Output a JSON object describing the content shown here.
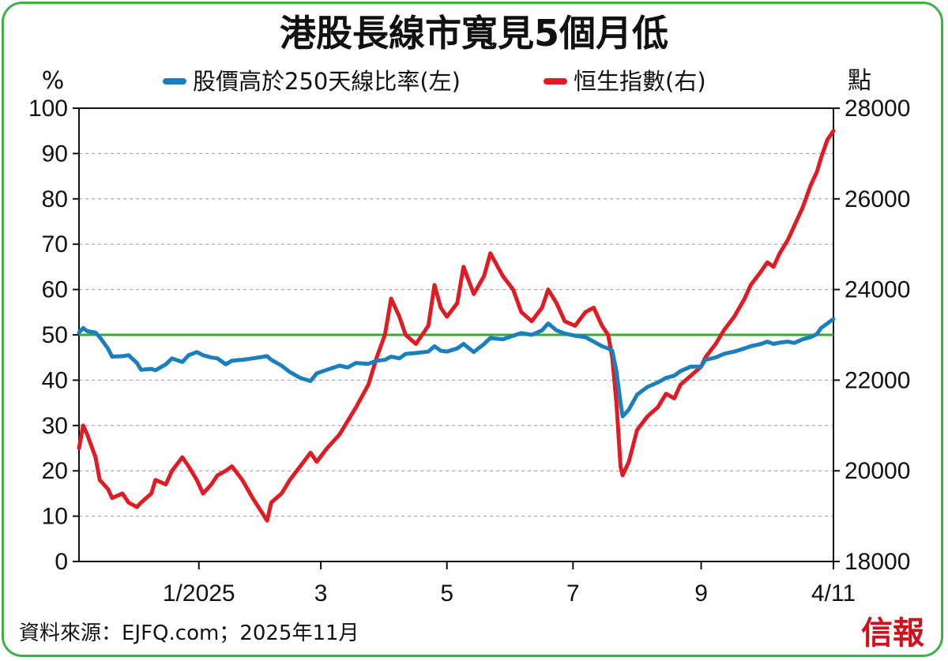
{
  "title": "港股長線市寬見5個月低",
  "source": "資料來源：EJFQ.com；2025年11月",
  "logo_text": "信報",
  "colors": {
    "breadth": "#1a7fbf",
    "hsi": "#e01b24",
    "threshold": "#3aa935",
    "frame": "#3db04a",
    "grid": "#9a9a9a"
  },
  "chart_data": {
    "type": "line",
    "left_axis_unit": "%",
    "right_axis_unit": "點",
    "y_left_range": [
      0,
      100
    ],
    "y_left_ticks": [
      "100",
      "90",
      "80",
      "70",
      "60",
      "50",
      "40",
      "30",
      "20",
      "10",
      "0"
    ],
    "y_right_range": [
      18000,
      28000
    ],
    "y_right_ticks": [
      "28000",
      "26000",
      "24000",
      "22000",
      "20000",
      "18000"
    ],
    "x_tick_labels": [
      "1/2025",
      "3",
      "5",
      "7",
      "9",
      "4/11"
    ],
    "x_range": [
      "2024-11-04",
      "2025-11-04"
    ],
    "x_ticks": [
      "2025-01-01",
      "2025-03-01",
      "2025-05-01",
      "2025-07-01",
      "2025-09-01",
      "2025-11-04"
    ],
    "legend_position": "top",
    "grid": "horizontal dashed",
    "reference_line": {
      "axis": "left",
      "value": 50
    },
    "series": [
      {
        "name": "股價高於250天線比率(左)",
        "axis": "left",
        "points": [
          [
            "2024-11-04",
            50.5
          ],
          [
            "2024-11-06",
            51.5
          ],
          [
            "2024-11-08",
            50.8
          ],
          [
            "2024-11-12",
            50.5
          ],
          [
            "2024-11-14",
            49.5
          ],
          [
            "2024-11-18",
            47.0
          ],
          [
            "2024-11-20",
            45.2
          ],
          [
            "2024-11-25",
            45.3
          ],
          [
            "2024-11-28",
            45.5
          ],
          [
            "2024-12-02",
            43.8
          ],
          [
            "2024-12-04",
            42.3
          ],
          [
            "2024-12-09",
            42.5
          ],
          [
            "2024-12-11",
            42.2
          ],
          [
            "2024-12-16",
            43.5
          ],
          [
            "2024-12-19",
            44.8
          ],
          [
            "2024-12-24",
            44.0
          ],
          [
            "2024-12-27",
            45.5
          ],
          [
            "2024-12-31",
            46.2
          ],
          [
            "2025-01-03",
            45.5
          ],
          [
            "2025-01-07",
            45.0
          ],
          [
            "2025-01-10",
            44.8
          ],
          [
            "2025-01-14",
            43.5
          ],
          [
            "2025-01-17",
            44.3
          ],
          [
            "2025-01-22",
            44.5
          ],
          [
            "2025-01-27",
            44.8
          ],
          [
            "2025-02-03",
            45.3
          ],
          [
            "2025-02-05",
            44.5
          ],
          [
            "2025-02-10",
            43.2
          ],
          [
            "2025-02-14",
            41.8
          ],
          [
            "2025-02-19",
            40.5
          ],
          [
            "2025-02-24",
            39.8
          ],
          [
            "2025-02-27",
            41.5
          ],
          [
            "2025-03-04",
            42.3
          ],
          [
            "2025-03-10",
            43.2
          ],
          [
            "2025-03-14",
            42.8
          ],
          [
            "2025-03-18",
            43.8
          ],
          [
            "2025-03-24",
            43.6
          ],
          [
            "2025-03-28",
            44.3
          ],
          [
            "2025-04-01",
            44.5
          ],
          [
            "2025-04-04",
            45.2
          ],
          [
            "2025-04-08",
            44.8
          ],
          [
            "2025-04-11",
            45.8
          ],
          [
            "2025-04-16",
            46.0
          ],
          [
            "2025-04-22",
            46.3
          ],
          [
            "2025-04-25",
            47.5
          ],
          [
            "2025-04-28",
            46.5
          ],
          [
            "2025-05-01",
            46.3
          ],
          [
            "2025-05-06",
            47.0
          ],
          [
            "2025-05-09",
            48.0
          ],
          [
            "2025-05-14",
            46.2
          ],
          [
            "2025-05-19",
            48.0
          ],
          [
            "2025-05-22",
            49.3
          ],
          [
            "2025-05-28",
            49.0
          ],
          [
            "2025-06-02",
            49.8
          ],
          [
            "2025-06-06",
            50.4
          ],
          [
            "2025-06-11",
            50.0
          ],
          [
            "2025-06-16",
            51.0
          ],
          [
            "2025-06-19",
            52.5
          ],
          [
            "2025-06-23",
            51.0
          ],
          [
            "2025-06-27",
            50.3
          ],
          [
            "2025-07-02",
            49.8
          ],
          [
            "2025-07-07",
            49.5
          ],
          [
            "2025-07-11",
            48.5
          ],
          [
            "2025-07-15",
            47.5
          ],
          [
            "2025-07-18",
            47.0
          ],
          [
            "2025-07-20",
            46.5
          ],
          [
            "2025-07-22",
            42.0
          ],
          [
            "2025-07-24",
            35.0
          ],
          [
            "2025-07-25",
            32.0
          ],
          [
            "2025-07-28",
            33.5
          ],
          [
            "2025-08-01",
            36.8
          ],
          [
            "2025-08-06",
            38.5
          ],
          [
            "2025-08-11",
            39.5
          ],
          [
            "2025-08-15",
            40.5
          ],
          [
            "2025-08-19",
            41.0
          ],
          [
            "2025-08-22",
            42.0
          ],
          [
            "2025-08-27",
            43.0
          ],
          [
            "2025-09-01",
            43.0
          ],
          [
            "2025-09-03",
            44.5
          ],
          [
            "2025-09-08",
            45.0
          ],
          [
            "2025-09-12",
            45.8
          ],
          [
            "2025-09-17",
            46.3
          ],
          [
            "2025-09-22",
            47.0
          ],
          [
            "2025-09-25",
            47.5
          ],
          [
            "2025-09-30",
            48.0
          ],
          [
            "2025-10-03",
            48.5
          ],
          [
            "2025-10-06",
            48.0
          ],
          [
            "2025-10-09",
            48.3
          ],
          [
            "2025-10-13",
            48.5
          ],
          [
            "2025-10-16",
            48.2
          ],
          [
            "2025-10-20",
            49.0
          ],
          [
            "2025-10-24",
            49.5
          ],
          [
            "2025-10-27",
            50.2
          ],
          [
            "2025-10-29",
            51.5
          ],
          [
            "2025-11-01",
            52.5
          ],
          [
            "2025-11-04",
            53.5
          ]
        ]
      },
      {
        "name": "恒生指數(右)",
        "axis": "right",
        "points": [
          [
            "2024-11-04",
            20500
          ],
          [
            "2024-11-06",
            21000
          ],
          [
            "2024-11-08",
            20800
          ],
          [
            "2024-11-12",
            20300
          ],
          [
            "2024-11-14",
            19800
          ],
          [
            "2024-11-18",
            19600
          ],
          [
            "2024-11-20",
            19400
          ],
          [
            "2024-11-25",
            19500
          ],
          [
            "2024-11-28",
            19300
          ],
          [
            "2024-12-02",
            19200
          ],
          [
            "2024-12-04",
            19300
          ],
          [
            "2024-12-09",
            19500
          ],
          [
            "2024-12-11",
            19800
          ],
          [
            "2024-12-16",
            19700
          ],
          [
            "2024-12-19",
            20000
          ],
          [
            "2024-12-24",
            20300
          ],
          [
            "2024-12-27",
            20100
          ],
          [
            "2024-12-31",
            19800
          ],
          [
            "2025-01-03",
            19500
          ],
          [
            "2025-01-07",
            19700
          ],
          [
            "2025-01-10",
            19900
          ],
          [
            "2025-01-14",
            20000
          ],
          [
            "2025-01-17",
            20100
          ],
          [
            "2025-01-22",
            19800
          ],
          [
            "2025-01-27",
            19400
          ],
          [
            "2025-02-03",
            18900
          ],
          [
            "2025-02-05",
            19300
          ],
          [
            "2025-02-10",
            19500
          ],
          [
            "2025-02-14",
            19800
          ],
          [
            "2025-02-19",
            20100
          ],
          [
            "2025-02-24",
            20400
          ],
          [
            "2025-02-27",
            20200
          ],
          [
            "2025-03-04",
            20500
          ],
          [
            "2025-03-10",
            20800
          ],
          [
            "2025-03-14",
            21100
          ],
          [
            "2025-03-18",
            21400
          ],
          [
            "2025-03-24",
            21900
          ],
          [
            "2025-03-28",
            22500
          ],
          [
            "2025-04-01",
            23000
          ],
          [
            "2025-04-04",
            23800
          ],
          [
            "2025-04-08",
            23400
          ],
          [
            "2025-04-11",
            23000
          ],
          [
            "2025-04-16",
            22800
          ],
          [
            "2025-04-22",
            23200
          ],
          [
            "2025-04-25",
            24100
          ],
          [
            "2025-04-28",
            23600
          ],
          [
            "2025-05-01",
            23400
          ],
          [
            "2025-05-06",
            23700
          ],
          [
            "2025-05-09",
            24500
          ],
          [
            "2025-05-14",
            23900
          ],
          [
            "2025-05-19",
            24300
          ],
          [
            "2025-05-22",
            24800
          ],
          [
            "2025-05-28",
            24300
          ],
          [
            "2025-06-02",
            24000
          ],
          [
            "2025-06-06",
            23500
          ],
          [
            "2025-06-11",
            23300
          ],
          [
            "2025-06-16",
            23600
          ],
          [
            "2025-06-19",
            24000
          ],
          [
            "2025-06-23",
            23700
          ],
          [
            "2025-06-27",
            23300
          ],
          [
            "2025-07-02",
            23200
          ],
          [
            "2025-07-07",
            23500
          ],
          [
            "2025-07-11",
            23600
          ],
          [
            "2025-07-15",
            23200
          ],
          [
            "2025-07-18",
            23000
          ],
          [
            "2025-07-20",
            22500
          ],
          [
            "2025-07-22",
            21500
          ],
          [
            "2025-07-24",
            20100
          ],
          [
            "2025-07-25",
            19900
          ],
          [
            "2025-07-28",
            20200
          ],
          [
            "2025-08-01",
            20900
          ],
          [
            "2025-08-06",
            21200
          ],
          [
            "2025-08-11",
            21400
          ],
          [
            "2025-08-15",
            21700
          ],
          [
            "2025-08-19",
            21600
          ],
          [
            "2025-08-22",
            21900
          ],
          [
            "2025-08-27",
            22100
          ],
          [
            "2025-09-01",
            22300
          ],
          [
            "2025-09-03",
            22500
          ],
          [
            "2025-09-08",
            22800
          ],
          [
            "2025-09-12",
            23100
          ],
          [
            "2025-09-17",
            23400
          ],
          [
            "2025-09-22",
            23800
          ],
          [
            "2025-09-25",
            24100
          ],
          [
            "2025-09-30",
            24400
          ],
          [
            "2025-10-03",
            24600
          ],
          [
            "2025-10-06",
            24500
          ],
          [
            "2025-10-09",
            24800
          ],
          [
            "2025-10-13",
            25100
          ],
          [
            "2025-10-16",
            25400
          ],
          [
            "2025-10-20",
            25800
          ],
          [
            "2025-10-24",
            26300
          ],
          [
            "2025-10-27",
            26600
          ],
          [
            "2025-10-29",
            26900
          ],
          [
            "2025-11-01",
            27300
          ],
          [
            "2025-11-04",
            27500
          ]
        ]
      }
    ]
  }
}
